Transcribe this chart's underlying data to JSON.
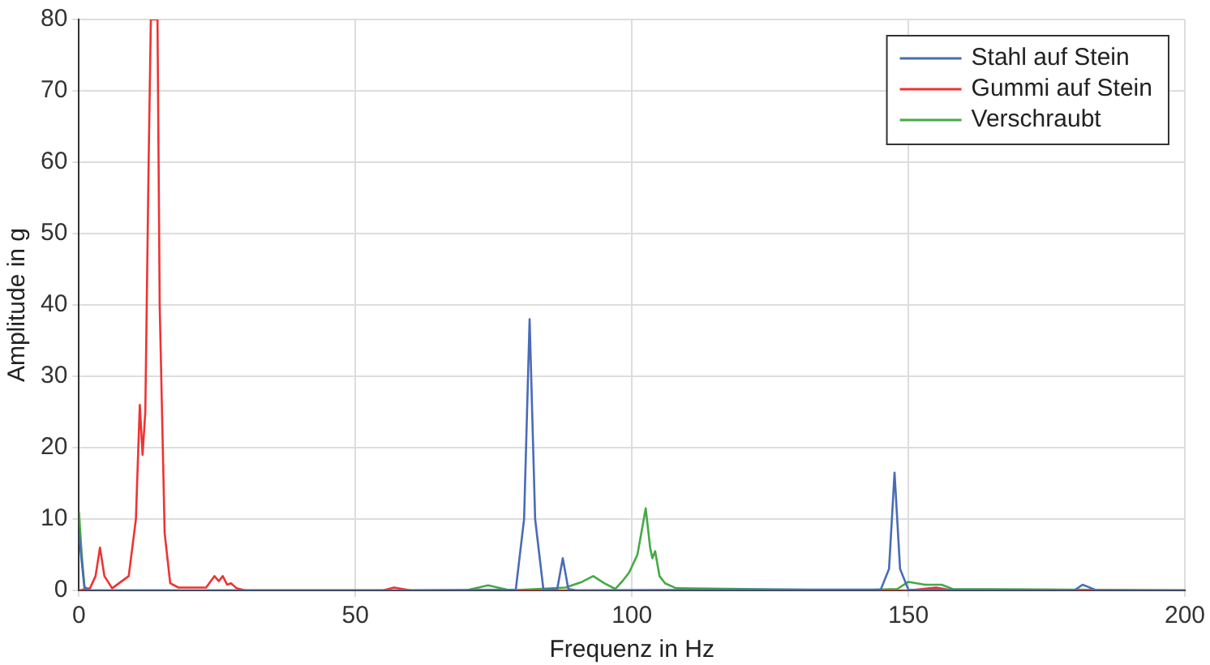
{
  "chart_data": {
    "type": "line",
    "xlabel": "Frequenz in Hz",
    "ylabel": "Amplitude in g",
    "xlim": [
      0,
      200
    ],
    "xticks": [
      0,
      50,
      100,
      150,
      200
    ],
    "ylim": [
      0,
      80
    ],
    "yticks": [
      0,
      10,
      20,
      30,
      40,
      50,
      60,
      70,
      80
    ],
    "grid": true,
    "legend": "top right",
    "marker": "none",
    "line_style": "solid",
    "series": [
      {
        "name": "Stahl auf Stein",
        "color": "#4a6bb8",
        "x": [
          0,
          0.5,
          1,
          2,
          60,
          79,
          80.5,
          81.5,
          82.5,
          84,
          86.5,
          87.5,
          88.5,
          90,
          120,
          145,
          146.5,
          147.5,
          148.5,
          150,
          180,
          181.5,
          182.5,
          184,
          200
        ],
        "values": [
          8,
          4,
          0.3,
          0,
          0,
          0.1,
          10,
          38,
          10,
          0.1,
          0.2,
          4.5,
          0.2,
          0,
          0.1,
          0.1,
          3,
          16.5,
          3,
          0.1,
          0,
          0.8,
          0.5,
          0,
          0
        ]
      },
      {
        "name": "Gummi auf Stein",
        "color": "#ee3333",
        "x": [
          0,
          2,
          3,
          3.8,
          4.6,
          6,
          9,
          10.3,
          11,
          11.5,
          12,
          12.6,
          13,
          14.2,
          14.6,
          15.5,
          16.5,
          18,
          23,
          24.5,
          25.3,
          26,
          26.8,
          27.5,
          28.5,
          30,
          55,
          57,
          60,
          150,
          155,
          158,
          200
        ],
        "values": [
          0,
          0.3,
          2,
          6,
          2,
          0.3,
          2,
          10,
          26,
          19,
          25,
          60,
          80,
          80,
          40,
          8,
          1,
          0.4,
          0.4,
          2,
          1.3,
          2,
          0.8,
          1,
          0.3,
          0,
          0,
          0.4,
          0,
          0,
          0.4,
          0,
          0
        ]
      },
      {
        "name": "Verschraubt",
        "color": "#44aa44",
        "x": [
          0,
          0.5,
          1,
          2,
          70,
          74,
          78,
          88,
          91,
          93,
          95,
          97,
          98.5,
          99.5,
          101,
          102.5,
          103.3,
          103.7,
          104.2,
          105,
          106,
          108,
          140,
          148,
          150,
          153,
          156,
          158,
          200
        ],
        "values": [
          11,
          5,
          0.5,
          0,
          0,
          0.7,
          0,
          0.4,
          1.2,
          2,
          1,
          0.2,
          1.5,
          2.5,
          5,
          11.5,
          6,
          4.5,
          5.5,
          2,
          1,
          0.3,
          0,
          0.2,
          1.2,
          0.8,
          0.8,
          0.2,
          0
        ]
      }
    ]
  }
}
